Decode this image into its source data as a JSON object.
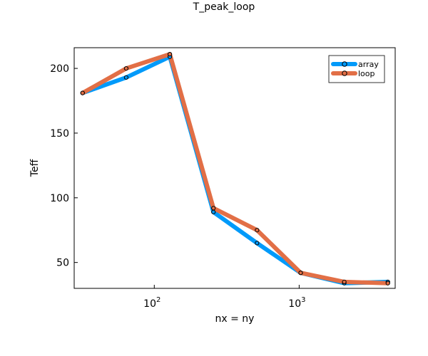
{
  "chart_data": {
    "type": "line",
    "title": "T_peak_loop",
    "xlabel": "nx = ny",
    "ylabel": "Teff",
    "xscale": "log10",
    "xlim": [
      28,
      4600
    ],
    "ylim": [
      30,
      216
    ],
    "x": [
      32,
      64,
      128,
      256,
      512,
      1024,
      2048,
      4096
    ],
    "xticks": [
      100,
      1000
    ],
    "xtick_labels": [
      {
        "base": "10",
        "exp": "2"
      },
      {
        "base": "10",
        "exp": "3"
      }
    ],
    "yticks": [
      50,
      100,
      150,
      200
    ],
    "ytick_labels": [
      "50",
      "100",
      "150",
      "200"
    ],
    "grid": false,
    "legend_position": "top-right",
    "series": [
      {
        "name": "array",
        "color": "#009AFA",
        "values": [
          181,
          193,
          209,
          89,
          65,
          42,
          34,
          35
        ]
      },
      {
        "name": "loop",
        "color": "#E26F46",
        "values": [
          181,
          200,
          211,
          92,
          75,
          42,
          35,
          34
        ]
      }
    ]
  }
}
